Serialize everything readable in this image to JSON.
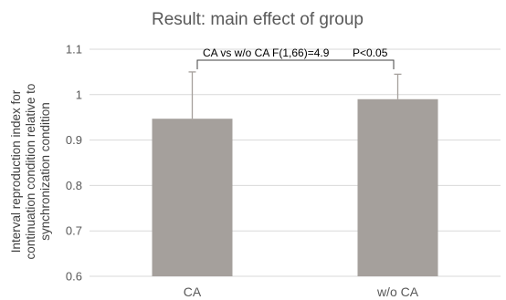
{
  "chart_data": {
    "type": "bar",
    "title": "Result: main effect of group",
    "xlabel": "",
    "ylabel_lines": [
      "Interval reproduction index for",
      "continuation condition relative to",
      "synchronization condition"
    ],
    "categories": [
      "CA",
      "w/o CA"
    ],
    "values": [
      0.947,
      0.99
    ],
    "error_upper": [
      0.103,
      0.055
    ],
    "ylim": [
      0.6,
      1.1
    ],
    "yticks": [
      "0.6",
      "0.7",
      "0.8",
      "0.9",
      "1",
      "1.1"
    ],
    "grid": true,
    "bar_color": "#a5a09c",
    "error_color": "#a5a09c",
    "annotation": {
      "stat_text": "CA vs w/o CA F(1,66)=4.9",
      "p_text": "P<0.05"
    }
  }
}
